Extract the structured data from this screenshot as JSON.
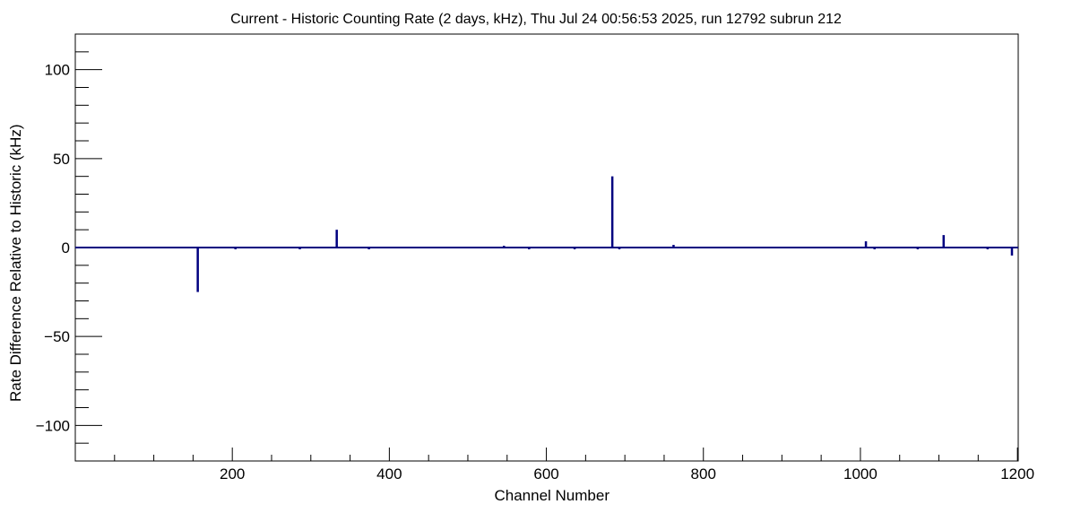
{
  "chart_data": {
    "type": "bar",
    "title": "Current - Historic Counting Rate (2 days, kHz), Thu Jul 24 00:56:53 2025, run 12792 subrun 212",
    "xlabel": "Channel Number",
    "ylabel": "Rate Difference Relative to Historic (kHz)",
    "xlim": [
      0,
      1201
    ],
    "ylim": [
      -120,
      120
    ],
    "xticks": [
      200,
      400,
      600,
      800,
      1000,
      1200
    ],
    "yticks": [
      -100,
      -50,
      0,
      50,
      100
    ],
    "xtick_labels": [
      "200",
      "400",
      "600",
      "800",
      "1000",
      "1200"
    ],
    "ytick_labels": [
      "−100",
      "−50",
      "0",
      "50",
      "100"
    ],
    "grid": false,
    "color": "#000080",
    "series": [
      {
        "x": [
          156,
          204,
          286,
          333,
          374,
          546,
          578,
          636,
          684,
          693,
          762,
          778,
          1007,
          1018,
          1073,
          1106,
          1162,
          1193
        ],
        "values": [
          -25,
          -1,
          -1,
          10,
          -1,
          1,
          -1,
          -1,
          40,
          -1,
          1.5,
          0.5,
          3.5,
          -1,
          -1,
          7,
          -1,
          -4.5
        ]
      }
    ]
  }
}
